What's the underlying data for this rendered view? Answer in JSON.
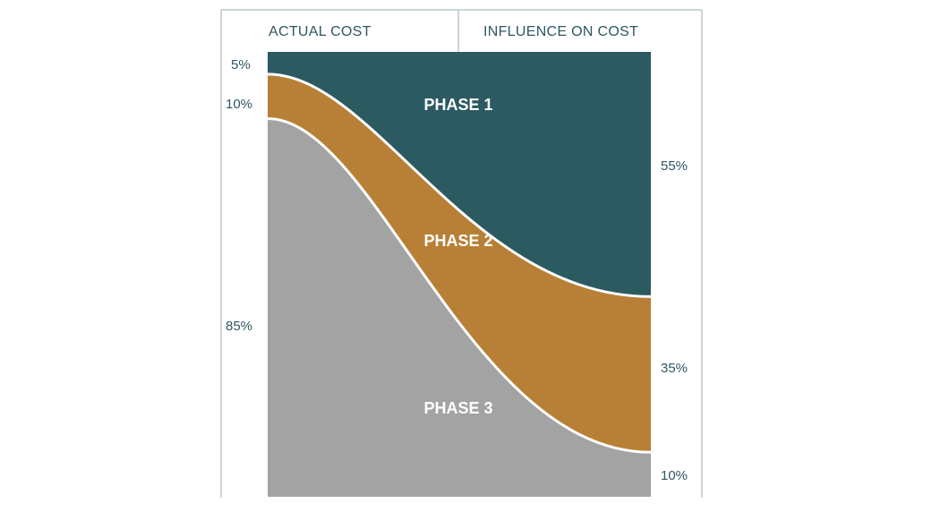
{
  "chart_data": {
    "type": "area",
    "columns": [
      "ACTUAL COST",
      "INFLUENCE ON COST"
    ],
    "series": [
      {
        "name": "PHASE 1",
        "actual_cost_pct": 5,
        "influence_on_cost_pct": 55,
        "color": "#2c5a61"
      },
      {
        "name": "PHASE 2",
        "actual_cost_pct": 10,
        "influence_on_cost_pct": 35,
        "color": "#b88036"
      },
      {
        "name": "PHASE 3",
        "actual_cost_pct": 85,
        "influence_on_cost_pct": 10,
        "color": "#a3a3a3"
      }
    ],
    "left_labels": [
      "5%",
      "10%",
      "85%"
    ],
    "right_labels": [
      "55%",
      "35%",
      "10%"
    ],
    "ylim": [
      0,
      100
    ],
    "frame_color": "#b9c9cc",
    "text_color": "#2f5663"
  }
}
